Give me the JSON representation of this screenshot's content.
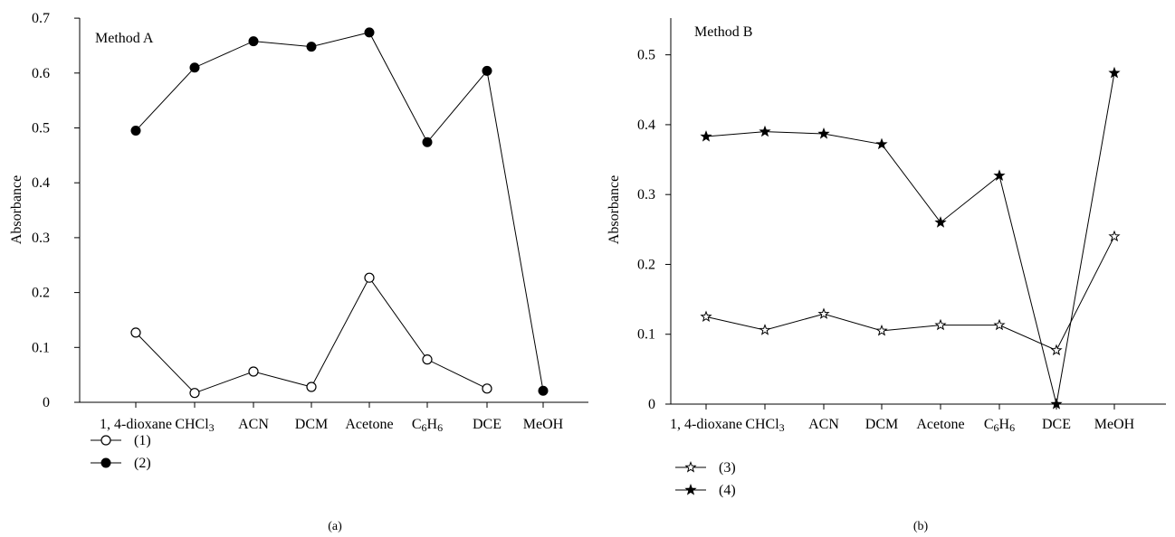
{
  "chart_data": [
    {
      "type": "line",
      "panel_label": "(a)",
      "annotation": "Method A",
      "ylabel": "Absorbance",
      "ylim": [
        0,
        0.7
      ],
      "yticks": [
        "0",
        "0.1",
        "0.2",
        "0.3",
        "0.4",
        "0.5",
        "0.6",
        "0.7"
      ],
      "categories": [
        "1, 4-dioxane",
        "CHCl3",
        "ACN",
        "DCM",
        "Acetone",
        "C6H6",
        "DCE",
        "MeOH"
      ],
      "series": [
        {
          "name": "(1)",
          "marker": "open-circle",
          "values": [
            0.127,
            0.017,
            0.056,
            0.028,
            0.227,
            0.078,
            0.025,
            null
          ]
        },
        {
          "name": "(2)",
          "marker": "filled-circle",
          "values": [
            0.495,
            0.61,
            0.658,
            0.648,
            0.674,
            0.474,
            0.604,
            0.021
          ]
        }
      ],
      "legend_position": "bottom-left",
      "grid": false
    },
    {
      "type": "line",
      "panel_label": "(b)",
      "annotation": "Method B",
      "ylabel": "Absorbance",
      "ylim": [
        0,
        0.55
      ],
      "yticks": [
        "0",
        "0.1",
        "0.2",
        "0.3",
        "0.4",
        "0.5"
      ],
      "categories": [
        "1, 4-dioxane",
        "CHCl3",
        "ACN",
        "DCM",
        "Acetone",
        "C6H6",
        "DCE",
        "MeOH"
      ],
      "series": [
        {
          "name": "(3)",
          "marker": "open-star",
          "values": [
            0.125,
            0.106,
            0.129,
            0.105,
            0.113,
            0.113,
            0.077,
            0.24
          ]
        },
        {
          "name": "(4)",
          "marker": "filled-star",
          "values": [
            0.383,
            0.39,
            0.387,
            0.372,
            0.26,
            0.327,
            0.0,
            0.474
          ]
        }
      ],
      "legend_position": "bottom-left",
      "grid": false
    }
  ]
}
